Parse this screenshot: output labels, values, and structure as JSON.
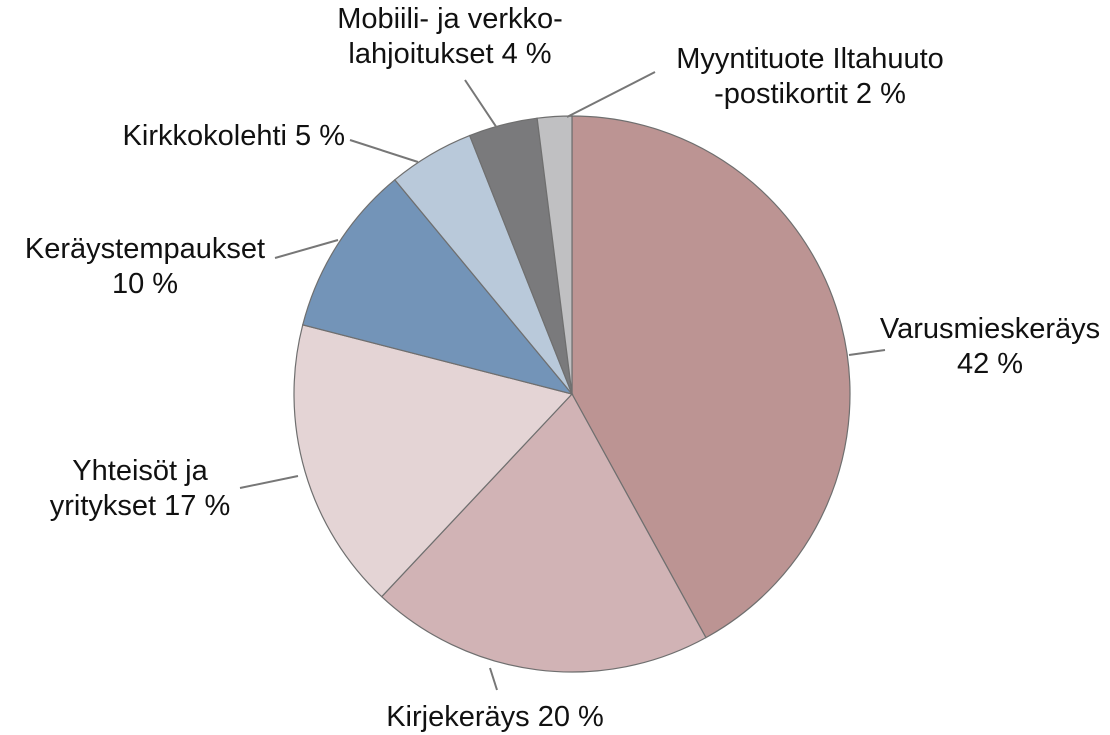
{
  "chart_data": {
    "type": "pie",
    "categories": [
      "Varusmieskeräys",
      "Kirjekeräys",
      "Yhteisöt ja\nyritykset",
      "Keräystempaukset",
      "Kirkkokolehti",
      "Mobiili- ja verkko-\nlahjoitukset",
      "Myyntituote Iltahuuto\n-postikortit"
    ],
    "values": [
      42,
      20,
      17,
      10,
      5,
      4,
      2
    ],
    "value_labels": [
      "42 %",
      "20 %",
      "17 %",
      "10 %",
      "5 %",
      "4 %",
      "2 %"
    ],
    "colors": [
      "#bc9493",
      "#d1b3b5",
      "#e4d4d5",
      "#7394b8",
      "#b9c9da",
      "#7a7a7c",
      "#c0c0c2"
    ]
  }
}
